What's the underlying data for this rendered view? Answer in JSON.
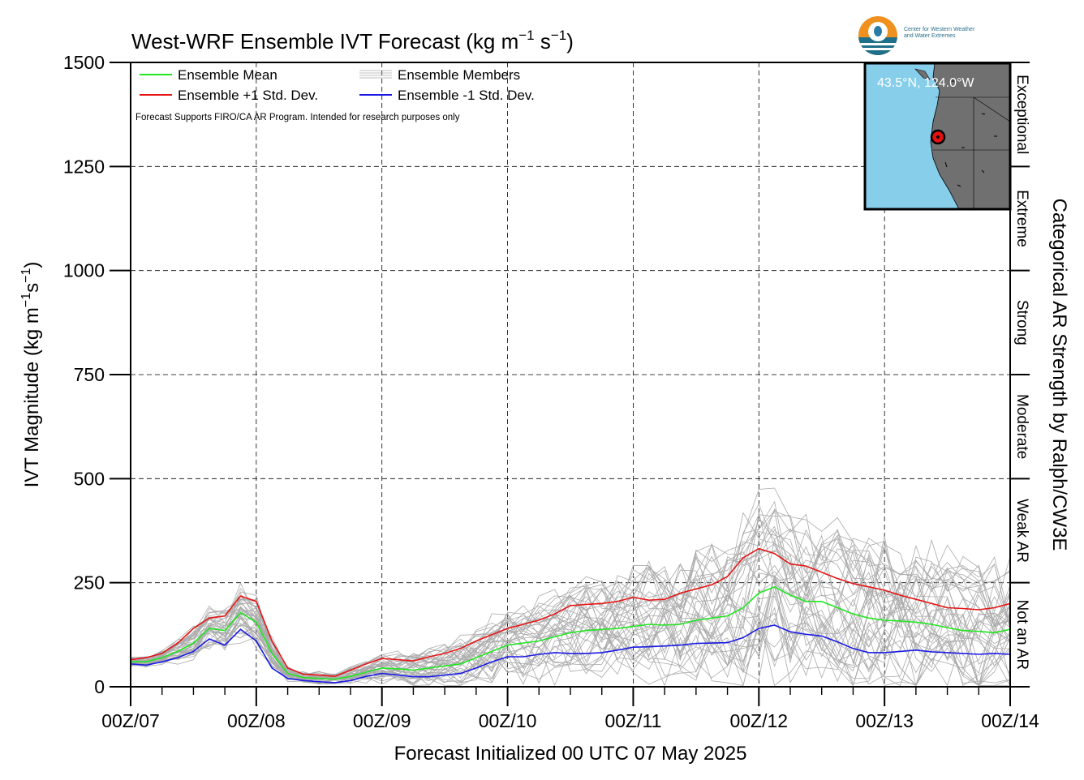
{
  "chart_data": {
    "type": "line",
    "title": "West-WRF Ensemble IVT Forecast (kg m",
    "title_exp1": "−1",
    "title_mid": " s",
    "title_exp2": "−1",
    "title_end": ")",
    "xlabel": "Forecast Initialized 00 UTC 07 May 2025",
    "ylabel_pre": "IVT Magnitude (kg m",
    "ylabel_exp1": "−1",
    "ylabel_mid": "s",
    "ylabel_exp2": "−1",
    "ylabel_end": ")",
    "y2label": "Categorical AR Strength by Ralph/CW3E",
    "ylim": [
      0,
      1500
    ],
    "xlim_hours": [
      0,
      168
    ],
    "y_ticks": [
      0,
      250,
      500,
      750,
      1000,
      1250,
      1500
    ],
    "x_ticks": [
      {
        "hour": 0,
        "label": "00Z/07"
      },
      {
        "hour": 24,
        "label": "00Z/08"
      },
      {
        "hour": 48,
        "label": "00Z/09"
      },
      {
        "hour": 72,
        "label": "00Z/10"
      },
      {
        "hour": 96,
        "label": "00Z/11"
      },
      {
        "hour": 120,
        "label": "00Z/12"
      },
      {
        "hour": 144,
        "label": "00Z/13"
      },
      {
        "hour": 168,
        "label": "00Z/14"
      }
    ],
    "grid": true,
    "categories_right": [
      {
        "label": "Not an AR",
        "from": 0,
        "to": 250
      },
      {
        "label": "Weak AR",
        "from": 250,
        "to": 500
      },
      {
        "label": "Moderate",
        "from": 500,
        "to": 750
      },
      {
        "label": "Strong",
        "from": 750,
        "to": 1000
      },
      {
        "label": "Extreme",
        "from": 1000,
        "to": 1250
      },
      {
        "label": "Exceptional",
        "from": 1250,
        "to": 1500
      }
    ],
    "legend": {
      "placement": "top-left",
      "items": [
        {
          "label": "Ensemble Mean",
          "color": "#22e622"
        },
        {
          "label": "Ensemble +1 Std. Dev.",
          "color": "#e61515"
        },
        {
          "label": "Ensemble Members",
          "color": "#aaaaaa"
        },
        {
          "label": "Ensemble -1 Std. Dev.",
          "color": "#1a1ae6"
        }
      ]
    },
    "note": "Forecast Supports FIRO/CA AR Program. Intended for research purposes only",
    "inset": {
      "label": "43.5°N, 124.0°W",
      "ocean_color": "#87ceeb",
      "land_color": "#707070",
      "marker_color": "#e61010"
    },
    "series": [
      {
        "name": "Ensemble Mean",
        "color": "#22e622",
        "x": [
          0,
          3,
          6,
          9,
          12,
          15,
          18,
          21,
          24,
          27,
          30,
          33,
          36,
          39,
          42,
          45,
          48,
          51,
          54,
          57,
          60,
          63,
          66,
          69,
          72,
          75,
          78,
          81,
          84,
          87,
          90,
          93,
          96,
          99,
          102,
          105,
          108,
          111,
          114,
          117,
          120,
          123,
          126,
          129,
          132,
          135,
          138,
          141,
          144,
          147,
          150,
          153,
          156,
          159,
          162,
          165,
          168
        ],
        "values": [
          60,
          60,
          70,
          85,
          105,
          140,
          135,
          178,
          155,
          80,
          32,
          22,
          20,
          18,
          25,
          35,
          45,
          43,
          40,
          45,
          50,
          55,
          70,
          85,
          100,
          105,
          110,
          120,
          130,
          135,
          138,
          140,
          145,
          150,
          148,
          150,
          160,
          165,
          170,
          190,
          225,
          240,
          220,
          205,
          205,
          190,
          175,
          165,
          160,
          158,
          155,
          150,
          142,
          135,
          133,
          130,
          138
        ]
      },
      {
        "name": "Ensemble +1 Std. Dev.",
        "color": "#e61515",
        "x": [
          0,
          3,
          6,
          9,
          12,
          15,
          18,
          21,
          24,
          27,
          30,
          33,
          36,
          39,
          42,
          45,
          48,
          51,
          54,
          57,
          60,
          63,
          66,
          69,
          72,
          75,
          78,
          81,
          84,
          87,
          90,
          93,
          96,
          99,
          102,
          105,
          108,
          111,
          114,
          117,
          120,
          123,
          126,
          129,
          132,
          135,
          138,
          141,
          144,
          147,
          150,
          153,
          156,
          159,
          162,
          165,
          168
        ],
        "values": [
          65,
          70,
          80,
          105,
          140,
          165,
          170,
          218,
          205,
          110,
          45,
          30,
          28,
          25,
          40,
          55,
          68,
          65,
          62,
          72,
          80,
          92,
          110,
          125,
          140,
          150,
          160,
          175,
          195,
          198,
          200,
          205,
          215,
          208,
          210,
          225,
          235,
          245,
          265,
          310,
          332,
          320,
          295,
          290,
          275,
          260,
          248,
          240,
          232,
          220,
          210,
          200,
          190,
          188,
          185,
          190,
          200
        ]
      },
      {
        "name": "Ensemble -1 Std. Dev.",
        "color": "#1a1ae6",
        "x": [
          0,
          3,
          6,
          9,
          12,
          15,
          18,
          21,
          24,
          27,
          30,
          33,
          36,
          39,
          42,
          45,
          48,
          51,
          54,
          57,
          60,
          63,
          66,
          69,
          72,
          75,
          78,
          81,
          84,
          87,
          90,
          93,
          96,
          99,
          102,
          105,
          108,
          111,
          114,
          117,
          120,
          123,
          126,
          129,
          132,
          135,
          138,
          141,
          144,
          147,
          150,
          153,
          156,
          159,
          162,
          165,
          168
        ],
        "values": [
          55,
          52,
          60,
          70,
          85,
          115,
          100,
          138,
          110,
          45,
          20,
          15,
          12,
          10,
          15,
          25,
          32,
          28,
          24,
          24,
          28,
          32,
          45,
          60,
          72,
          72,
          78,
          82,
          80,
          80,
          82,
          88,
          95,
          96,
          98,
          100,
          104,
          105,
          106,
          118,
          140,
          148,
          132,
          126,
          122,
          108,
          92,
          82,
          82,
          85,
          88,
          84,
          82,
          80,
          78,
          80,
          78
        ]
      },
      {
        "name": "Ensemble Members",
        "color": "#aaaaaa",
        "count": 40,
        "spread_values": [
          8,
          10,
          14,
          22,
          32,
          40,
          48,
          60,
          55,
          30,
          14,
          12,
          12,
          10,
          18,
          22,
          28,
          32,
          36,
          42,
          46,
          52,
          60,
          68,
          75,
          80,
          84,
          90,
          96,
          98,
          100,
          104,
          110,
          115,
          118,
          125,
          135,
          150,
          165,
          180,
          190,
          180,
          170,
          165,
          160,
          160,
          158,
          158,
          155,
          150,
          148,
          145,
          140,
          140,
          140,
          140,
          140
        ]
      }
    ]
  }
}
